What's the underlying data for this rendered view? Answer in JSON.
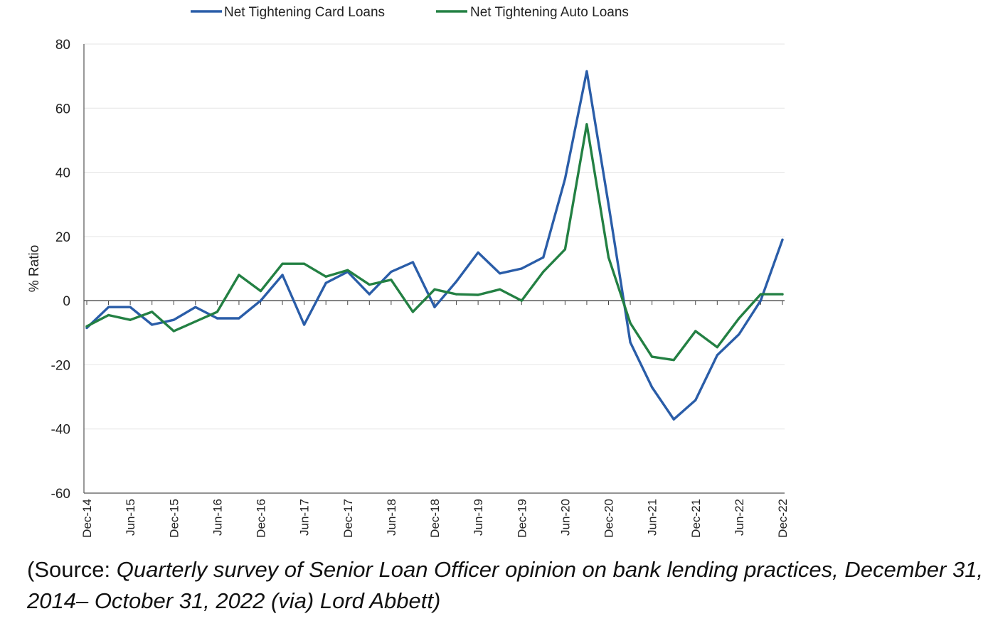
{
  "chart_data": {
    "type": "line",
    "title": "",
    "xlabel": "",
    "ylabel": "% Ratio",
    "ylim": [
      -60,
      80
    ],
    "yticks": [
      80,
      60,
      40,
      20,
      0,
      -20,
      -40,
      -60
    ],
    "x_tick_labels": [
      "Dec-14",
      "Jun-15",
      "Dec-15",
      "Jun-16",
      "Dec-16",
      "Jun-17",
      "Dec-17",
      "Jun-18",
      "Dec-18",
      "Jun-19",
      "Dec-19",
      "Jun-20",
      "Dec-20",
      "Jun-21",
      "Dec-21",
      "Jun-22",
      "Dec-22"
    ],
    "legend_position": "top",
    "grid": true,
    "series": [
      {
        "name": "Net Tightening Card Loans",
        "color": "#2a5da8",
        "values": [
          -8.5,
          -2,
          -2,
          -7.5,
          -6,
          -2,
          -5.5,
          -5.5,
          0,
          8,
          -7.5,
          5.5,
          9,
          2,
          9,
          12,
          -2,
          6,
          15,
          8.5,
          10,
          13.5,
          38,
          71.5,
          30,
          -13,
          -27,
          -37,
          -31,
          -17,
          -10.5,
          0,
          19
        ]
      },
      {
        "name": "Net Tightening Auto Loans",
        "color": "#238043",
        "values": [
          -8,
          -4.5,
          -6,
          -3.5,
          -9.5,
          -6.5,
          -3.5,
          8,
          3,
          11.5,
          11.5,
          7.5,
          9.5,
          5,
          6.5,
          -3.5,
          3.5,
          2,
          1.8,
          3.5,
          0,
          9,
          16,
          55,
          13.5,
          -7,
          -17.5,
          -18.5,
          -9.5,
          -14.5,
          -5.5,
          2,
          2
        ]
      }
    ]
  },
  "source": {
    "prefix": "(Source: ",
    "italic": "Quarterly survey of Senior Loan Officer opinion on bank lending practices, December 31, 2014– October 31, 2022 (via) Lord Abbett)"
  }
}
